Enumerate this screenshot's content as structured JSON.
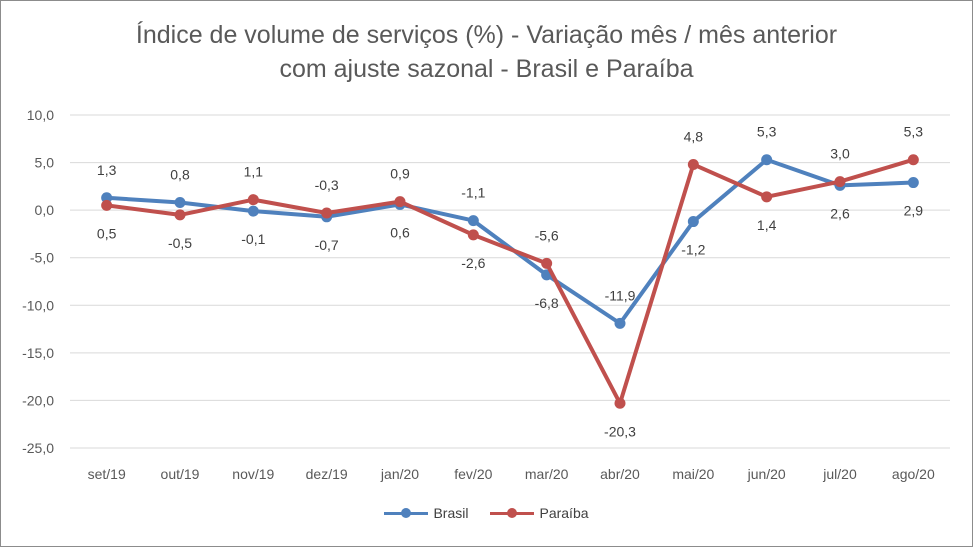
{
  "chart_data": {
    "type": "line",
    "title_line1": "Índice de volume de serviços (%) - Variação mês / mês anterior",
    "title_line2": "com ajuste sazonal - Brasil e Paraíba",
    "categories": [
      "set/19",
      "out/19",
      "nov/19",
      "dez/19",
      "jan/20",
      "fev/20",
      "mar/20",
      "abr/20",
      "mai/20",
      "jun/20",
      "jul/20",
      "ago/20"
    ],
    "ylim": [
      -25,
      10
    ],
    "yticks": [
      10,
      5,
      0,
      -5,
      -10,
      -15,
      -20,
      -25
    ],
    "ytick_labels": [
      "10,0",
      "5,0",
      "0,0",
      "-5,0",
      "-10,0",
      "-15,0",
      "-20,0",
      "-25,0"
    ],
    "grid": true,
    "legend_position": "bottom",
    "series": [
      {
        "name": "Brasil",
        "color": "#4f81bd",
        "values": [
          1.3,
          0.8,
          -0.1,
          -0.7,
          0.6,
          -1.1,
          -6.8,
          -11.9,
          -1.2,
          5.3,
          2.6,
          2.9
        ],
        "labels": [
          "1,3",
          "0,8",
          "-0,1",
          "-0,7",
          "0,6",
          "-1,1",
          "-6,8",
          "-11,9",
          "-1,2",
          "5,3",
          "2,6",
          "2,9"
        ]
      },
      {
        "name": "Paraíba",
        "color": "#c0504d",
        "values": [
          0.5,
          -0.5,
          1.1,
          -0.3,
          0.9,
          -2.6,
          -5.6,
          -20.3,
          4.8,
          1.4,
          3.0,
          5.3
        ],
        "labels": [
          "0,5",
          "-0,5",
          "1,1",
          "-0,3",
          "0,9",
          "-2,6",
          "-5,6",
          "-20,3",
          "4,8",
          "1,4",
          "3,0",
          "5,3"
        ]
      }
    ]
  }
}
